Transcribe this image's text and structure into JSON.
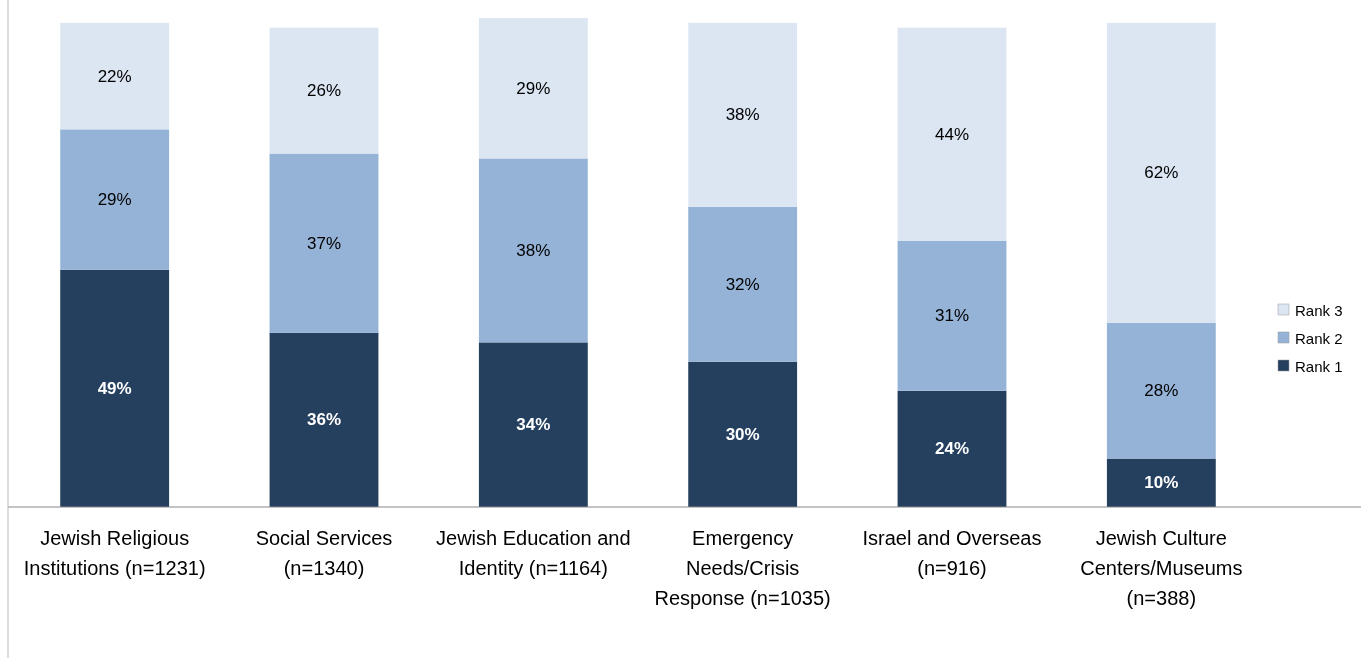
{
  "chart_data": {
    "type": "bar",
    "stacked": true,
    "legend": "right",
    "tick_labels": "x",
    "categories": [
      "Jewish Religious Institutions (n=1231)",
      "Social Services (n=1340)",
      "Jewish Education and Identity (n=1164)",
      "Emergency Needs/Crisis Response (n=1035)",
      "Israel and Overseas (n=916)",
      "Jewish Culture Centers/Museums (n=388)"
    ],
    "series": [
      {
        "name": "Rank 1",
        "color": "#253f5e",
        "values": [
          49,
          36,
          34,
          30,
          24,
          10
        ],
        "value_labels": [
          "49%",
          "36%",
          "34%",
          "30%",
          "24%",
          "10%"
        ]
      },
      {
        "name": "Rank 2",
        "color": "#95b3d7",
        "values": [
          29,
          37,
          38,
          32,
          31,
          28
        ],
        "value_labels": [
          "29%",
          "37%",
          "38%",
          "32%",
          "31%",
          "28%"
        ]
      },
      {
        "name": "Rank 3",
        "color": "#dce6f2",
        "values": [
          22,
          26,
          29,
          38,
          44,
          62
        ],
        "value_labels": [
          "22%",
          "26%",
          "29%",
          "38%",
          "44%",
          "62%"
        ]
      }
    ]
  }
}
